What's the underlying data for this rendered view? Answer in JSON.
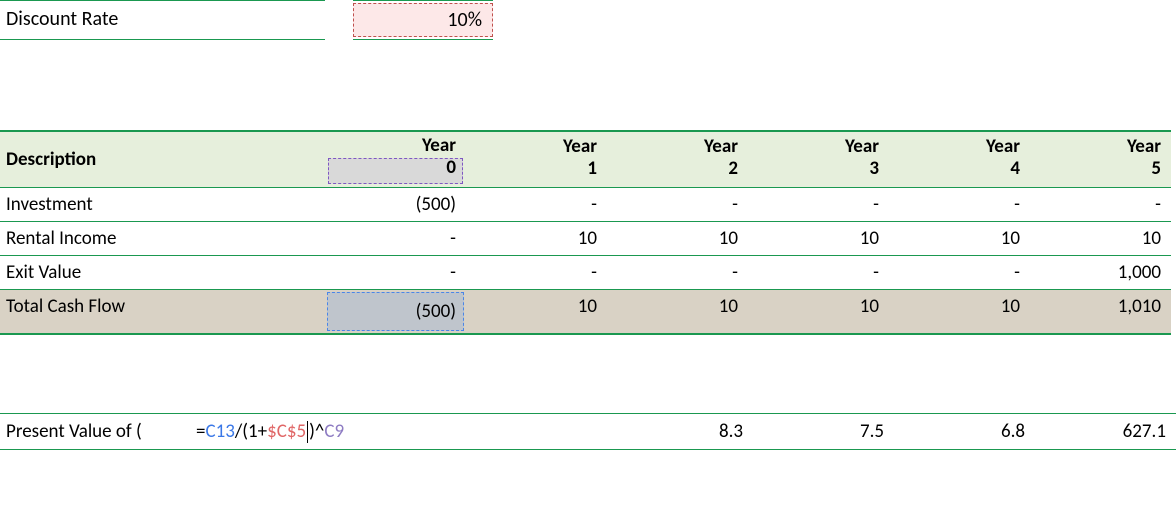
{
  "colors": {
    "green_border": "#1a9850",
    "header_bg": "#e6efdc",
    "total_bg": "#d9d2c5",
    "discount_bg": "#fde8e8",
    "discount_border": "#c0504d",
    "year0_sel_border": "#7e57c2",
    "year0_sel_bg": "#d9d9d9",
    "total_sel_border": "#4a86e8",
    "total_sel_bg": "#bfc5cc",
    "formula_blue": "#3b78e7",
    "formula_red": "#e06666",
    "formula_purple": "#8e7cc3"
  },
  "discount": {
    "label": "Discount Rate",
    "value": "10%"
  },
  "headers": {
    "description": "Description",
    "year_word": "Year",
    "years": [
      "0",
      "1",
      "2",
      "3",
      "4",
      "5"
    ]
  },
  "rows": {
    "investment": {
      "label": "Investment",
      "values": [
        "(500)",
        "-",
        "-",
        "-",
        "-",
        "-"
      ]
    },
    "rental": {
      "label": "Rental Income",
      "values": [
        "-",
        "10",
        "10",
        "10",
        "10",
        "10"
      ]
    },
    "exit": {
      "label": "Exit Value",
      "values": [
        "-",
        "-",
        "-",
        "-",
        "-",
        "1,000"
      ]
    },
    "total": {
      "label": "Total Cash Flow",
      "values": [
        "(500)",
        "10",
        "10",
        "10",
        "10",
        "1,010"
      ]
    }
  },
  "pv": {
    "label": "Present Value of (",
    "formula": {
      "prefix": "=",
      "ref1": "C13",
      "mid1": "/(1+",
      "ref2": "$C$5",
      "mid2": ")^",
      "ref3": "C9"
    },
    "values": [
      "8.3",
      "7.5",
      "6.8",
      "627.1"
    ]
  }
}
